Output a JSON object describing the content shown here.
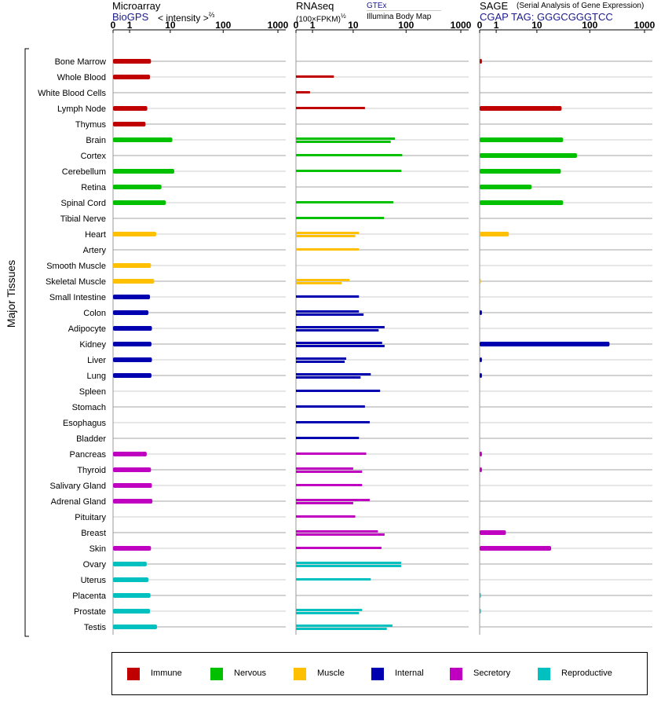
{
  "headers": {
    "microarray": {
      "title": "Microarray",
      "source": "BioGPS",
      "units": "< intensity >",
      "units_exp": "⅔"
    },
    "rnaseq": {
      "title": "RNAseq",
      "source": "GTEx",
      "units": "(100×FPKM)",
      "units_exp": "½",
      "subsource": "Illumina Body Map"
    },
    "sage": {
      "title": "SAGE",
      "subtitle": "(Serial Analysis of Gene Expression)",
      "tag": "CGAP TAG: GGGCGGGTCC"
    }
  },
  "axis_ticks": [
    "0",
    "1",
    "10",
    "100",
    "1000"
  ],
  "group_label": "Major Tissues",
  "legend": [
    {
      "key": "immune",
      "label": "Immune",
      "color": "#c00000"
    },
    {
      "key": "nervous",
      "label": "Nervous",
      "color": "#00c000"
    },
    {
      "key": "muscle",
      "label": "Muscle",
      "color": "#ffc000"
    },
    {
      "key": "internal",
      "label": "Internal",
      "color": "#0000b0"
    },
    {
      "key": "secretory",
      "label": "Secretory",
      "color": "#c000c0"
    },
    {
      "key": "reproductive",
      "label": "Reproductive",
      "color": "#00c0c0"
    }
  ],
  "chart_data": {
    "type": "bar",
    "orientation": "horizontal",
    "xscale": "log1p",
    "xlim": [
      0,
      1000
    ],
    "panels": [
      "Microarray",
      "RNAseq",
      "SAGE"
    ],
    "tissues": [
      {
        "name": "Bone Marrow",
        "group": "immune",
        "microarray": 3.9,
        "rnaseq": [],
        "sage": [
          0.1
        ]
      },
      {
        "name": "Whole Blood",
        "group": "immune",
        "microarray": 3.7,
        "rnaseq": [
          3.9
        ],
        "sage": []
      },
      {
        "name": "White Blood Cells",
        "group": "immune",
        "microarray": null,
        "rnaseq": [
          0.8
        ],
        "sage": []
      },
      {
        "name": "Lymph Node",
        "group": "immune",
        "microarray": 3.2,
        "rnaseq": [
          17
        ],
        "sage": [
          30
        ]
      },
      {
        "name": "Thymus",
        "group": "immune",
        "microarray": 2.9,
        "rnaseq": [],
        "sage": []
      },
      {
        "name": "Brain",
        "group": "nervous",
        "microarray": 11,
        "rnaseq": [
          62,
          52
        ],
        "sage": [
          32
        ]
      },
      {
        "name": "Cortex",
        "group": "nervous",
        "microarray": null,
        "rnaseq": [
          85
        ],
        "sage": [
          58
        ]
      },
      {
        "name": "Cerebellum",
        "group": "nervous",
        "microarray": 12,
        "rnaseq": [
          82
        ],
        "sage": [
          29
        ]
      },
      {
        "name": "Retina",
        "group": "nervous",
        "microarray": 6.6,
        "rnaseq": [],
        "sage": [
          7.8
        ]
      },
      {
        "name": "Spinal Cord",
        "group": "nervous",
        "microarray": 8.1,
        "rnaseq": [
          58
        ],
        "sage": [
          32
        ]
      },
      {
        "name": "Tibial Nerve",
        "group": "nervous",
        "microarray": null,
        "rnaseq": [
          39
        ],
        "sage": []
      },
      {
        "name": "Heart",
        "group": "muscle",
        "microarray": 5.1,
        "rnaseq": [
          13,
          11
        ],
        "sage": [
          2.4
        ]
      },
      {
        "name": "Artery",
        "group": "muscle",
        "microarray": null,
        "rnaseq": [
          13
        ],
        "sage": []
      },
      {
        "name": "Smooth Muscle",
        "group": "muscle",
        "microarray": 3.9,
        "rnaseq": [],
        "sage": []
      },
      {
        "name": "Skeletal Muscle",
        "group": "muscle",
        "microarray": 4.6,
        "rnaseq": [
          8.4,
          5.8
        ],
        "sage": [
          0.05
        ]
      },
      {
        "name": "Small Intestine",
        "group": "internal",
        "microarray": 3.7,
        "rnaseq": [
          13
        ],
        "sage": []
      },
      {
        "name": "Colon",
        "group": "internal",
        "microarray": 3.4,
        "rnaseq": [
          13,
          16
        ],
        "sage": [
          0.1
        ]
      },
      {
        "name": "Adipocyte",
        "group": "internal",
        "microarray": 4.1,
        "rnaseq": [
          40,
          31
        ],
        "sage": []
      },
      {
        "name": "Kidney",
        "group": "internal",
        "microarray": 4.0,
        "rnaseq": [
          36,
          40
        ],
        "sage": [
          230
        ]
      },
      {
        "name": "Liver",
        "group": "internal",
        "microarray": 4.1,
        "rnaseq": [
          7.2,
          6.7
        ],
        "sage": [
          0.1
        ]
      },
      {
        "name": "Lung",
        "group": "internal",
        "microarray": 4.0,
        "rnaseq": [
          22,
          14
        ],
        "sage": [
          0.1
        ]
      },
      {
        "name": "Spleen",
        "group": "internal",
        "microarray": null,
        "rnaseq": [
          33
        ],
        "sage": []
      },
      {
        "name": "Stomach",
        "group": "internal",
        "microarray": null,
        "rnaseq": [
          17
        ],
        "sage": []
      },
      {
        "name": "Esophagus",
        "group": "internal",
        "microarray": null,
        "rnaseq": [
          21
        ],
        "sage": []
      },
      {
        "name": "Bladder",
        "group": "internal",
        "microarray": null,
        "rnaseq": [
          13
        ],
        "sage": []
      },
      {
        "name": "Pancreas",
        "group": "secretory",
        "microarray": 3.1,
        "rnaseq": [
          18
        ],
        "sage": [
          0.1
        ]
      },
      {
        "name": "Thyroid",
        "group": "secretory",
        "microarray": 3.9,
        "rnaseq": [
          10,
          15
        ],
        "sage": [
          0.1
        ]
      },
      {
        "name": "Salivary Gland",
        "group": "secretory",
        "microarray": 4.1,
        "rnaseq": [
          15
        ],
        "sage": []
      },
      {
        "name": "Adrenal Gland",
        "group": "secretory",
        "microarray": 4.2,
        "rnaseq": [
          21,
          10
        ],
        "sage": []
      },
      {
        "name": "Pituitary",
        "group": "secretory",
        "microarray": null,
        "rnaseq": [
          11
        ],
        "sage": []
      },
      {
        "name": "Breast",
        "group": "secretory",
        "microarray": null,
        "rnaseq": [
          30,
          40
        ],
        "sage": [
          2.0
        ]
      },
      {
        "name": "Skin",
        "group": "secretory",
        "microarray": 3.9,
        "rnaseq": [
          35
        ],
        "sage": [
          19
        ]
      },
      {
        "name": "Ovary",
        "group": "reproductive",
        "microarray": 3.1,
        "rnaseq": [
          81,
          81
        ],
        "sage": []
      },
      {
        "name": "Uterus",
        "group": "reproductive",
        "microarray": 3.4,
        "rnaseq": [
          22
        ],
        "sage": []
      },
      {
        "name": "Placenta",
        "group": "reproductive",
        "microarray": 3.8,
        "rnaseq": [],
        "sage": [
          0.05
        ]
      },
      {
        "name": "Prostate",
        "group": "reproductive",
        "microarray": 3.7,
        "rnaseq": [
          15,
          13
        ],
        "sage": [
          0.05
        ]
      },
      {
        "name": "Testis",
        "group": "reproductive",
        "microarray": 5.3,
        "rnaseq": [
          56,
          44
        ],
        "sage": []
      }
    ]
  }
}
